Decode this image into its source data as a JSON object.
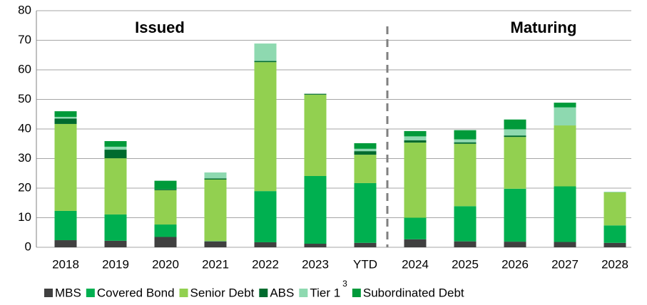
{
  "chart_data": {
    "type": "stacked_bar",
    "annotations": [
      "Issued",
      "Maturing"
    ],
    "categories": [
      "2018",
      "2019",
      "2020",
      "2021",
      "2022",
      "2023",
      "YTD",
      "2024",
      "2025",
      "2026",
      "2027",
      "2028"
    ],
    "series": [
      {
        "name": "MBS",
        "color": "#404040",
        "values": [
          2.4,
          2.2,
          3.5,
          2.0,
          1.7,
          1.2,
          1.5,
          2.7,
          2.0,
          1.9,
          1.8,
          1.5
        ]
      },
      {
        "name": "Covered Bond",
        "color": "#00b050",
        "values": [
          9.9,
          8.9,
          4.2,
          0.1,
          17.3,
          22.9,
          20.2,
          7.3,
          11.9,
          17.9,
          18.8,
          5.9
        ]
      },
      {
        "name": "Senior Debt",
        "color": "#92d050",
        "values": [
          29.4,
          19.0,
          11.6,
          20.8,
          43.6,
          27.5,
          9.6,
          25.4,
          21.1,
          17.5,
          20.6,
          11.2
        ]
      },
      {
        "name": "ABS",
        "color": "#006b2e",
        "values": [
          1.8,
          2.9,
          0.3,
          0.4,
          0.4,
          0.3,
          1.2,
          0.8,
          0.5,
          0.5,
          0,
          0
        ]
      },
      {
        "name": "Tier 1",
        "footnote_marker": "3",
        "color": "#8ed9b0",
        "values": [
          0.6,
          1.0,
          0,
          2.0,
          5.9,
          0,
          0.8,
          1.3,
          1.0,
          2.1,
          6.1,
          0.2
        ]
      },
      {
        "name": "Subordinated Debt",
        "color": "#009a3a",
        "values": [
          1.9,
          1.9,
          2.9,
          0,
          0,
          0,
          1.9,
          1.8,
          3.1,
          3.3,
          1.6,
          0
        ]
      }
    ],
    "ylim": [
      0,
      80
    ],
    "yticks": [
      0,
      10,
      20,
      30,
      40,
      50,
      60,
      70,
      80
    ],
    "grid": true,
    "legend": "bottom"
  }
}
